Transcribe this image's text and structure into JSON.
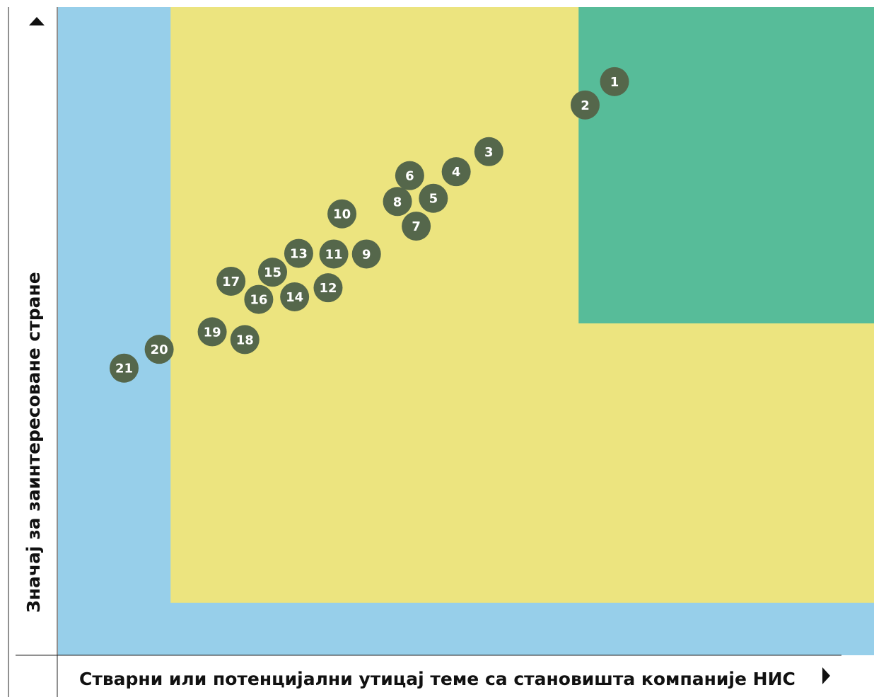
{
  "chart_data": {
    "type": "scatter",
    "title": "",
    "xlabel": "Стварни или потенцијални утицај теме са становишта компаније НИС",
    "ylabel": "Значај за заинтересоване стране",
    "xlim": [
      0,
      100
    ],
    "ylim": [
      0,
      100
    ],
    "grid": false,
    "legend": "none",
    "zones": [
      {
        "name": "low",
        "color": "#97cfea",
        "x": [
          0,
          100
        ],
        "y": [
          0,
          100
        ]
      },
      {
        "name": "medium",
        "color": "#ece47f",
        "x": [
          13.8,
          100
        ],
        "y": [
          8.1,
          100
        ]
      },
      {
        "name": "high",
        "color": "#57bc99",
        "x": [
          63.8,
          100
        ],
        "y": [
          51.2,
          100
        ]
      }
    ],
    "marker_color": "#55674b",
    "points": [
      {
        "label": "1",
        "x": 68.2,
        "y": 88.5
      },
      {
        "label": "2",
        "x": 64.6,
        "y": 84.9
      },
      {
        "label": "3",
        "x": 52.8,
        "y": 77.7
      },
      {
        "label": "4",
        "x": 48.8,
        "y": 74.6
      },
      {
        "label": "5",
        "x": 46.0,
        "y": 70.5
      },
      {
        "label": "6",
        "x": 43.1,
        "y": 74.0
      },
      {
        "label": "7",
        "x": 43.9,
        "y": 66.2
      },
      {
        "label": "8",
        "x": 41.6,
        "y": 70.0
      },
      {
        "label": "9",
        "x": 37.8,
        "y": 61.9
      },
      {
        "label": "10",
        "x": 34.8,
        "y": 68.1
      },
      {
        "label": "11",
        "x": 33.8,
        "y": 61.9
      },
      {
        "label": "12",
        "x": 33.1,
        "y": 56.7
      },
      {
        "label": "13",
        "x": 29.5,
        "y": 62.0
      },
      {
        "label": "14",
        "x": 29.0,
        "y": 55.3
      },
      {
        "label": "15",
        "x": 26.3,
        "y": 59.1
      },
      {
        "label": "16",
        "x": 24.6,
        "y": 54.9
      },
      {
        "label": "17",
        "x": 21.2,
        "y": 57.7
      },
      {
        "label": "18",
        "x": 22.9,
        "y": 48.7
      },
      {
        "label": "19",
        "x": 18.9,
        "y": 49.9
      },
      {
        "label": "20",
        "x": 12.4,
        "y": 47.2
      },
      {
        "label": "21",
        "x": 8.1,
        "y": 44.3
      }
    ]
  }
}
